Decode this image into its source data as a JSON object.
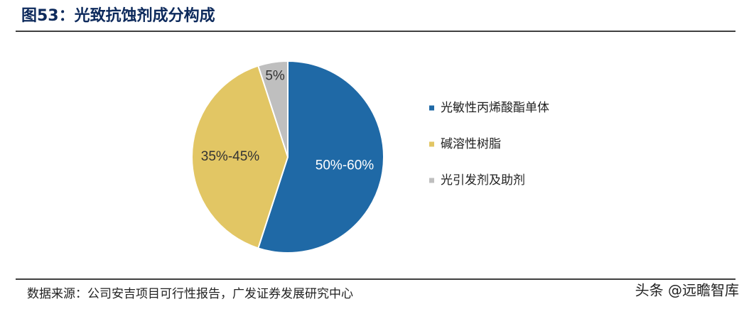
{
  "chart_data": {
    "type": "pie",
    "title": "图53：光致抗蚀剂成分构成",
    "categories": [
      "光敏性丙烯酸酯单体",
      "碱溶性树脂",
      "光引发剂及助剂"
    ],
    "values": [
      55,
      40,
      5
    ],
    "value_labels": [
      "50%-60%",
      "35%-45%",
      "5%"
    ],
    "colors": [
      "#1f69a6",
      "#e2c664",
      "#bfbfbf"
    ],
    "legend": "right"
  },
  "source": "数据来源：公司安吉项目可行性报告，广发证券发展研究中心",
  "watermark": "头条 @远瞻智库"
}
